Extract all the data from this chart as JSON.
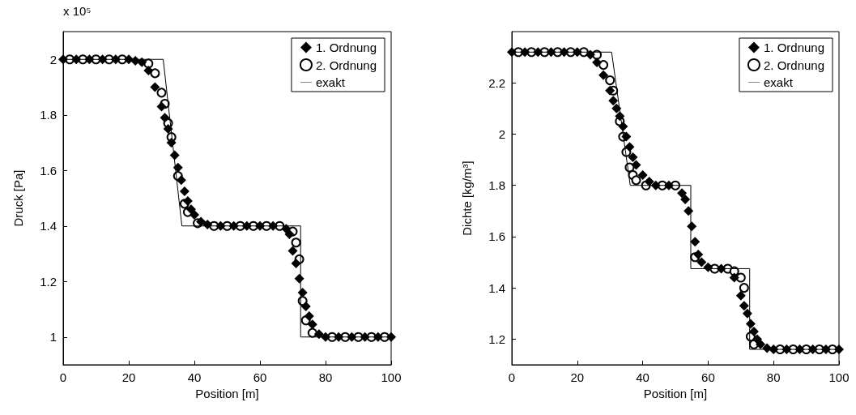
{
  "chart_data": [
    {
      "type": "scatter",
      "xlabel": "Position [m]",
      "ylabel": "Druck [Pa]",
      "annotations": [
        "x 10⁵"
      ],
      "xlim": [
        0,
        100
      ],
      "xticks": [
        0,
        20,
        40,
        60,
        80,
        100
      ],
      "ylim": [
        0.9,
        2.1
      ],
      "yticks": [
        1,
        1.2,
        1.4,
        1.6,
        1.8,
        2
      ],
      "grid": false,
      "legend": "top right",
      "series": [
        {
          "name": "1. Ordnung",
          "marker": "diamond",
          "color": "#000000",
          "x": [
            0,
            4,
            8,
            12,
            16,
            20,
            22,
            24,
            26,
            28,
            30,
            31,
            32,
            33,
            34,
            35,
            36,
            37,
            38,
            39,
            40,
            42,
            44,
            48,
            52,
            56,
            60,
            64,
            68,
            69,
            70,
            71,
            72,
            73,
            74,
            75,
            76,
            78,
            80,
            84,
            88,
            92,
            96,
            100
          ],
          "values": [
            2,
            2,
            2,
            2,
            2,
            2,
            1.995,
            1.99,
            1.96,
            1.9,
            1.83,
            1.79,
            1.75,
            1.7,
            1.655,
            1.61,
            1.565,
            1.525,
            1.49,
            1.46,
            1.44,
            1.415,
            1.405,
            1.4,
            1.4,
            1.4,
            1.4,
            1.4,
            1.39,
            1.37,
            1.31,
            1.265,
            1.21,
            1.16,
            1.11,
            1.075,
            1.045,
            1.01,
            1,
            1,
            1,
            1,
            1,
            1
          ]
        },
        {
          "name": "2. Ordnung",
          "marker": "circle",
          "color": "#000000",
          "x": [
            2,
            6,
            10,
            14,
            18,
            26,
            28,
            30,
            31,
            32,
            33,
            35,
            37,
            38,
            41,
            46,
            50,
            54,
            58,
            62,
            66,
            70,
            71,
            72,
            73,
            74,
            76,
            82,
            86,
            90,
            94,
            98
          ],
          "values": [
            2,
            2,
            2,
            2,
            2,
            1.985,
            1.95,
            1.88,
            1.84,
            1.77,
            1.72,
            1.58,
            1.48,
            1.45,
            1.41,
            1.4,
            1.4,
            1.4,
            1.4,
            1.4,
            1.4,
            1.38,
            1.34,
            1.28,
            1.13,
            1.06,
            1.015,
            1,
            1,
            1,
            1,
            1
          ]
        },
        {
          "name": "exakt",
          "type": "line",
          "marker": "none",
          "color": "#000000",
          "x": [
            0,
            30.5,
            36.2,
            72.4,
            72.4,
            100
          ],
          "values": [
            2,
            2,
            1.4,
            1.4,
            1,
            1
          ]
        }
      ]
    },
    {
      "type": "scatter",
      "xlabel": "Position [m]",
      "ylabel": "Dichte [kg/m³]",
      "xlim": [
        0,
        100
      ],
      "xticks": [
        0,
        20,
        40,
        60,
        80,
        100
      ],
      "ylim": [
        1.1,
        2.4
      ],
      "yticks": [
        1.2,
        1.4,
        1.6,
        1.8,
        2,
        2.2
      ],
      "grid": false,
      "legend": "top right",
      "series": [
        {
          "name": "1. Ordnung",
          "marker": "diamond",
          "color": "#000000",
          "x": [
            0,
            4,
            8,
            12,
            16,
            20,
            24,
            26,
            28,
            30,
            31,
            32,
            33,
            34,
            35,
            36,
            37,
            38,
            40,
            42,
            44,
            48,
            52,
            53,
            54,
            55,
            56,
            57,
            58,
            60,
            64,
            68,
            70,
            71,
            72,
            73,
            74,
            75,
            76,
            78,
            80,
            84,
            88,
            92,
            96,
            100
          ],
          "values": [
            2.32,
            2.32,
            2.32,
            2.32,
            2.32,
            2.32,
            2.31,
            2.28,
            2.23,
            2.17,
            2.13,
            2.1,
            2.07,
            2.03,
            1.99,
            1.95,
            1.91,
            1.88,
            1.84,
            1.815,
            1.8,
            1.8,
            1.77,
            1.745,
            1.7,
            1.64,
            1.58,
            1.53,
            1.5,
            1.48,
            1.475,
            1.44,
            1.37,
            1.33,
            1.3,
            1.26,
            1.23,
            1.2,
            1.18,
            1.165,
            1.16,
            1.16,
            1.16,
            1.16,
            1.16,
            1.16
          ]
        },
        {
          "name": "2. Ordnung",
          "marker": "circle",
          "color": "#000000",
          "x": [
            2,
            6,
            10,
            14,
            18,
            22,
            26,
            28,
            30,
            31,
            33,
            34,
            35,
            36,
            37,
            38,
            41,
            46,
            50,
            56,
            62,
            66,
            68,
            70,
            71,
            73,
            74,
            82,
            86,
            90,
            94,
            98
          ],
          "values": [
            2.32,
            2.32,
            2.32,
            2.32,
            2.32,
            2.32,
            2.31,
            2.27,
            2.21,
            2.17,
            2.05,
            1.99,
            1.93,
            1.87,
            1.84,
            1.82,
            1.8,
            1.8,
            1.8,
            1.52,
            1.475,
            1.475,
            1.465,
            1.44,
            1.4,
            1.21,
            1.18,
            1.16,
            1.16,
            1.16,
            1.16,
            1.16
          ]
        },
        {
          "name": "exakt",
          "type": "line",
          "marker": "none",
          "color": "#000000",
          "x": [
            0,
            30.5,
            36.2,
            54.7,
            54.7,
            72.7,
            72.7,
            100
          ],
          "values": [
            2.32,
            2.32,
            1.8,
            1.8,
            1.475,
            1.475,
            1.16,
            1.16
          ]
        }
      ]
    }
  ]
}
